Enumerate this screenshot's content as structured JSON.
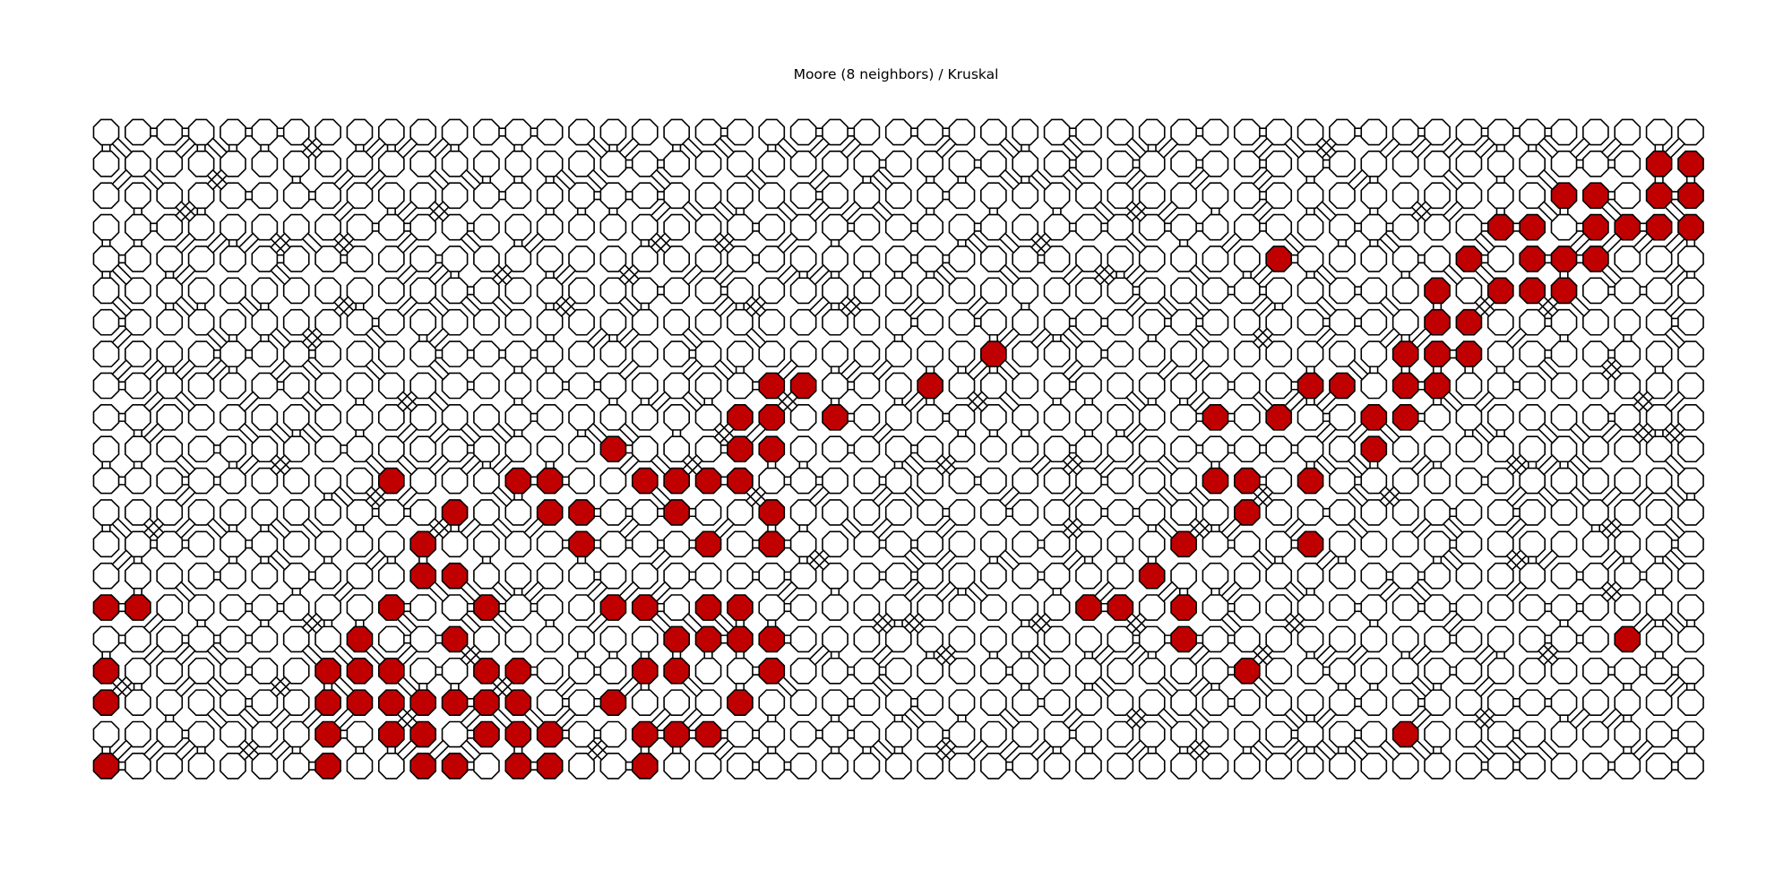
{
  "title": "Moore (8 neighbors) / Kruskal",
  "maze": {
    "columns": 51,
    "rows": 21,
    "neighborhood": "Moore (8 neighbors)",
    "algorithm": "Kruskal",
    "colors": {
      "cell_fill": "#ffffff",
      "highlight_fill": "#c00000",
      "stroke": "#000000"
    },
    "highlighted_cells": [
      [
        1,
        49
      ],
      [
        1,
        50
      ],
      [
        2,
        46
      ],
      [
        2,
        47
      ],
      [
        2,
        49
      ],
      [
        2,
        50
      ],
      [
        3,
        44
      ],
      [
        3,
        45
      ],
      [
        3,
        47
      ],
      [
        3,
        48
      ],
      [
        3,
        49
      ],
      [
        3,
        50
      ],
      [
        4,
        37
      ],
      [
        4,
        43
      ],
      [
        4,
        45
      ],
      [
        4,
        46
      ],
      [
        4,
        47
      ],
      [
        5,
        42
      ],
      [
        5,
        44
      ],
      [
        5,
        45
      ],
      [
        5,
        46
      ],
      [
        6,
        42
      ],
      [
        6,
        43
      ],
      [
        7,
        28
      ],
      [
        7,
        41
      ],
      [
        7,
        42
      ],
      [
        7,
        43
      ],
      [
        8,
        21
      ],
      [
        8,
        22
      ],
      [
        8,
        26
      ],
      [
        8,
        38
      ],
      [
        8,
        39
      ],
      [
        8,
        41
      ],
      [
        8,
        42
      ],
      [
        9,
        20
      ],
      [
        9,
        21
      ],
      [
        9,
        23
      ],
      [
        9,
        35
      ],
      [
        9,
        37
      ],
      [
        9,
        40
      ],
      [
        9,
        41
      ],
      [
        10,
        16
      ],
      [
        10,
        20
      ],
      [
        10,
        21
      ],
      [
        10,
        40
      ],
      [
        11,
        9
      ],
      [
        11,
        13
      ],
      [
        11,
        14
      ],
      [
        11,
        17
      ],
      [
        11,
        18
      ],
      [
        11,
        19
      ],
      [
        11,
        20
      ],
      [
        11,
        35
      ],
      [
        11,
        36
      ],
      [
        11,
        38
      ],
      [
        12,
        11
      ],
      [
        12,
        14
      ],
      [
        12,
        15
      ],
      [
        12,
        18
      ],
      [
        12,
        21
      ],
      [
        12,
        36
      ],
      [
        13,
        10
      ],
      [
        13,
        15
      ],
      [
        13,
        19
      ],
      [
        13,
        21
      ],
      [
        13,
        34
      ],
      [
        13,
        38
      ],
      [
        14,
        10
      ],
      [
        14,
        11
      ],
      [
        14,
        33
      ],
      [
        15,
        0
      ],
      [
        15,
        1
      ],
      [
        15,
        9
      ],
      [
        15,
        12
      ],
      [
        15,
        16
      ],
      [
        15,
        17
      ],
      [
        15,
        19
      ],
      [
        15,
        20
      ],
      [
        15,
        31
      ],
      [
        15,
        32
      ],
      [
        15,
        34
      ],
      [
        16,
        8
      ],
      [
        16,
        11
      ],
      [
        16,
        18
      ],
      [
        16,
        19
      ],
      [
        16,
        20
      ],
      [
        16,
        21
      ],
      [
        16,
        34
      ],
      [
        16,
        48
      ],
      [
        17,
        0
      ],
      [
        17,
        7
      ],
      [
        17,
        8
      ],
      [
        17,
        9
      ],
      [
        17,
        12
      ],
      [
        17,
        13
      ],
      [
        17,
        17
      ],
      [
        17,
        18
      ],
      [
        17,
        21
      ],
      [
        17,
        36
      ],
      [
        18,
        0
      ],
      [
        18,
        7
      ],
      [
        18,
        8
      ],
      [
        18,
        9
      ],
      [
        18,
        10
      ],
      [
        18,
        11
      ],
      [
        18,
        12
      ],
      [
        18,
        13
      ],
      [
        18,
        16
      ],
      [
        18,
        20
      ],
      [
        19,
        7
      ],
      [
        19,
        9
      ],
      [
        19,
        10
      ],
      [
        19,
        12
      ],
      [
        19,
        13
      ],
      [
        19,
        14
      ],
      [
        19,
        17
      ],
      [
        19,
        18
      ],
      [
        19,
        19
      ],
      [
        19,
        41
      ],
      [
        20,
        0
      ],
      [
        20,
        7
      ],
      [
        20,
        10
      ],
      [
        20,
        11
      ],
      [
        20,
        13
      ],
      [
        20,
        14
      ],
      [
        20,
        17
      ]
    ]
  }
}
